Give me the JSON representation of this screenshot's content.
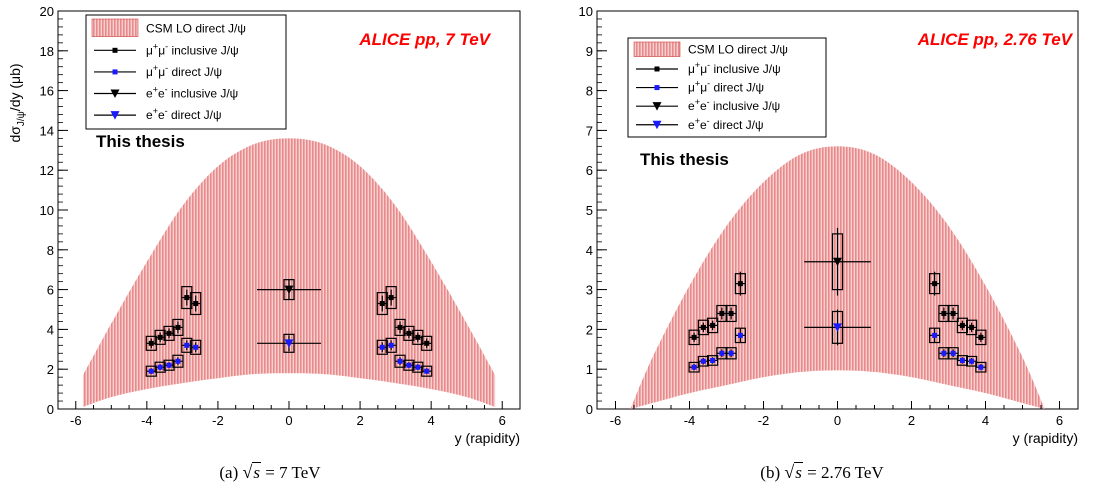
{
  "captions": [
    {
      "prefix": "(a) ",
      "radicand": "s",
      "suffix": " = 7 TeV"
    },
    {
      "prefix": "(b) ",
      "radicand": "s",
      "suffix": " = 2.76 TeV"
    }
  ],
  "chart_data": [
    {
      "type": "scatter",
      "experiment_label": "ALICE pp, 7 TeV",
      "annotation": "This thesis",
      "xlabel": "y (rapidity)",
      "ylabel": "dσJ/ψ/dy (μb)",
      "xlim": [
        -6.5,
        6.5
      ],
      "ylim": [
        0,
        20
      ],
      "xticks": [
        -6,
        -4,
        -2,
        0,
        2,
        4,
        6
      ],
      "yticks": [
        0,
        2,
        4,
        6,
        8,
        10,
        12,
        14,
        16,
        18,
        20
      ],
      "legend_position": "top-left",
      "colors": {
        "band": "#e88a8a",
        "inclusive": "#000000",
        "direct": "#1a1aff",
        "experiment_label": "#ff0000"
      },
      "band": {
        "name": "CSM LO direct J/ψ",
        "x": [
          -5.8,
          -5,
          -4,
          -3,
          -2,
          -1,
          0,
          1,
          2,
          3,
          4,
          5,
          5.8
        ],
        "lower": [
          0.1,
          0.6,
          1.0,
          1.3,
          1.55,
          1.75,
          1.8,
          1.75,
          1.55,
          1.3,
          1.0,
          0.6,
          0.1
        ],
        "upper": [
          1.7,
          4.3,
          7.4,
          10.2,
          12.2,
          13.3,
          13.6,
          13.3,
          12.2,
          10.2,
          7.4,
          4.3,
          1.7
        ]
      },
      "series": [
        {
          "name": "μ+μ- inclusive J/ψ",
          "marker": "square",
          "color": "#000000",
          "points": [
            {
              "x": -3.875,
              "y": 3.3,
              "ex": 0.125,
              "ey": 0.25,
              "sys": 0.35
            },
            {
              "x": -3.625,
              "y": 3.6,
              "ex": 0.125,
              "ey": 0.25,
              "sys": 0.35
            },
            {
              "x": -3.375,
              "y": 3.8,
              "ex": 0.125,
              "ey": 0.25,
              "sys": 0.35
            },
            {
              "x": -3.125,
              "y": 4.1,
              "ex": 0.125,
              "ey": 0.3,
              "sys": 0.4
            },
            {
              "x": -2.875,
              "y": 5.6,
              "ex": 0.125,
              "ey": 0.4,
              "sys": 0.55
            },
            {
              "x": -2.625,
              "y": 5.3,
              "ex": 0.125,
              "ey": 0.4,
              "sys": 0.55
            },
            {
              "x": 2.625,
              "y": 5.3,
              "ex": 0.125,
              "ey": 0.4,
              "sys": 0.55
            },
            {
              "x": 2.875,
              "y": 5.6,
              "ex": 0.125,
              "ey": 0.4,
              "sys": 0.55
            },
            {
              "x": 3.125,
              "y": 4.1,
              "ex": 0.125,
              "ey": 0.3,
              "sys": 0.4
            },
            {
              "x": 3.375,
              "y": 3.8,
              "ex": 0.125,
              "ey": 0.25,
              "sys": 0.35
            },
            {
              "x": 3.625,
              "y": 3.6,
              "ex": 0.125,
              "ey": 0.25,
              "sys": 0.35
            },
            {
              "x": 3.875,
              "y": 3.3,
              "ex": 0.125,
              "ey": 0.25,
              "sys": 0.35
            }
          ]
        },
        {
          "name": "μ+μ- direct J/ψ",
          "marker": "square",
          "color": "#1a1aff",
          "points": [
            {
              "x": -3.875,
              "y": 1.9,
              "ex": 0.125,
              "ey": 0.15,
              "sys": 0.25
            },
            {
              "x": -3.625,
              "y": 2.1,
              "ex": 0.125,
              "ey": 0.15,
              "sys": 0.25
            },
            {
              "x": -3.375,
              "y": 2.2,
              "ex": 0.125,
              "ey": 0.15,
              "sys": 0.25
            },
            {
              "x": -3.125,
              "y": 2.4,
              "ex": 0.125,
              "ey": 0.2,
              "sys": 0.3
            },
            {
              "x": -2.875,
              "y": 3.2,
              "ex": 0.125,
              "ey": 0.25,
              "sys": 0.35
            },
            {
              "x": -2.625,
              "y": 3.1,
              "ex": 0.125,
              "ey": 0.25,
              "sys": 0.35
            },
            {
              "x": 2.625,
              "y": 3.1,
              "ex": 0.125,
              "ey": 0.25,
              "sys": 0.35
            },
            {
              "x": 2.875,
              "y": 3.2,
              "ex": 0.125,
              "ey": 0.25,
              "sys": 0.35
            },
            {
              "x": 3.125,
              "y": 2.4,
              "ex": 0.125,
              "ey": 0.2,
              "sys": 0.3
            },
            {
              "x": 3.375,
              "y": 2.2,
              "ex": 0.125,
              "ey": 0.15,
              "sys": 0.25
            },
            {
              "x": 3.625,
              "y": 2.1,
              "ex": 0.125,
              "ey": 0.15,
              "sys": 0.25
            },
            {
              "x": 3.875,
              "y": 1.9,
              "ex": 0.125,
              "ey": 0.15,
              "sys": 0.25
            }
          ]
        },
        {
          "name": "e+e- inclusive J/ψ",
          "marker": "triangle-down",
          "color": "#000000",
          "points": [
            {
              "x": 0,
              "y": 6.0,
              "ex": 0.9,
              "ey": 0.5,
              "sys": 0.5
            }
          ]
        },
        {
          "name": "e+e- direct J/ψ",
          "marker": "triangle-down",
          "color": "#1a1aff",
          "points": [
            {
              "x": 0,
              "y": 3.3,
              "ex": 0.9,
              "ey": 0.4,
              "sys": 0.45
            }
          ]
        }
      ]
    },
    {
      "type": "scatter",
      "experiment_label": "ALICE pp, 2.76 TeV",
      "annotation": "This thesis",
      "xlabel": "y (rapidity)",
      "ylabel": "",
      "xlim": [
        -6.5,
        6.5
      ],
      "ylim": [
        0,
        10
      ],
      "xticks": [
        -6,
        -4,
        -2,
        0,
        2,
        4,
        6
      ],
      "yticks": [
        0,
        1,
        2,
        3,
        4,
        5,
        6,
        7,
        8,
        9,
        10
      ],
      "legend_position": "top-left",
      "colors": {
        "band": "#e88a8a",
        "inclusive": "#000000",
        "direct": "#1a1aff",
        "experiment_label": "#ff0000"
      },
      "band": {
        "name": "CSM LO direct J/ψ",
        "x": [
          -5.6,
          -5,
          -4,
          -3,
          -2,
          -1,
          0,
          1,
          2,
          3,
          4,
          5,
          5.6
        ],
        "lower": [
          0.0,
          0.15,
          0.4,
          0.6,
          0.8,
          0.93,
          0.97,
          0.93,
          0.8,
          0.6,
          0.4,
          0.15,
          0.0
        ],
        "upper": [
          0.0,
          1.3,
          3.1,
          4.6,
          5.7,
          6.4,
          6.6,
          6.4,
          5.7,
          4.6,
          3.1,
          1.3,
          0.0
        ]
      },
      "series": [
        {
          "name": "μ+μ- inclusive J/ψ",
          "marker": "square",
          "color": "#000000",
          "points": [
            {
              "x": -3.875,
              "y": 1.8,
              "ex": 0.125,
              "ey": 0.12,
              "sys": 0.18
            },
            {
              "x": -3.625,
              "y": 2.05,
              "ex": 0.125,
              "ey": 0.12,
              "sys": 0.18
            },
            {
              "x": -3.375,
              "y": 2.1,
              "ex": 0.125,
              "ey": 0.12,
              "sys": 0.18
            },
            {
              "x": -3.125,
              "y": 2.4,
              "ex": 0.125,
              "ey": 0.15,
              "sys": 0.2
            },
            {
              "x": -2.875,
              "y": 2.4,
              "ex": 0.125,
              "ey": 0.15,
              "sys": 0.2
            },
            {
              "x": -2.625,
              "y": 3.15,
              "ex": 0.125,
              "ey": 0.3,
              "sys": 0.25
            },
            {
              "x": 2.625,
              "y": 3.15,
              "ex": 0.125,
              "ey": 0.3,
              "sys": 0.25
            },
            {
              "x": 2.875,
              "y": 2.4,
              "ex": 0.125,
              "ey": 0.15,
              "sys": 0.2
            },
            {
              "x": 3.125,
              "y": 2.4,
              "ex": 0.125,
              "ey": 0.15,
              "sys": 0.2
            },
            {
              "x": 3.375,
              "y": 2.1,
              "ex": 0.125,
              "ey": 0.12,
              "sys": 0.18
            },
            {
              "x": 3.625,
              "y": 2.05,
              "ex": 0.125,
              "ey": 0.12,
              "sys": 0.18
            },
            {
              "x": 3.875,
              "y": 1.8,
              "ex": 0.125,
              "ey": 0.12,
              "sys": 0.18
            }
          ]
        },
        {
          "name": "μ+μ- direct J/ψ",
          "marker": "square",
          "color": "#1a1aff",
          "points": [
            {
              "x": -3.875,
              "y": 1.05,
              "ex": 0.125,
              "ey": 0.08,
              "sys": 0.12
            },
            {
              "x": -3.625,
              "y": 1.2,
              "ex": 0.125,
              "ey": 0.08,
              "sys": 0.12
            },
            {
              "x": -3.375,
              "y": 1.22,
              "ex": 0.125,
              "ey": 0.08,
              "sys": 0.12
            },
            {
              "x": -3.125,
              "y": 1.4,
              "ex": 0.125,
              "ey": 0.1,
              "sys": 0.14
            },
            {
              "x": -2.875,
              "y": 1.4,
              "ex": 0.125,
              "ey": 0.1,
              "sys": 0.14
            },
            {
              "x": -2.625,
              "y": 1.85,
              "ex": 0.125,
              "ey": 0.18,
              "sys": 0.18
            },
            {
              "x": 2.625,
              "y": 1.85,
              "ex": 0.125,
              "ey": 0.18,
              "sys": 0.18
            },
            {
              "x": 2.875,
              "y": 1.4,
              "ex": 0.125,
              "ey": 0.1,
              "sys": 0.14
            },
            {
              "x": 3.125,
              "y": 1.4,
              "ex": 0.125,
              "ey": 0.1,
              "sys": 0.14
            },
            {
              "x": 3.375,
              "y": 1.22,
              "ex": 0.125,
              "ey": 0.08,
              "sys": 0.12
            },
            {
              "x": 3.625,
              "y": 1.2,
              "ex": 0.125,
              "ey": 0.08,
              "sys": 0.12
            },
            {
              "x": 3.875,
              "y": 1.05,
              "ex": 0.125,
              "ey": 0.08,
              "sys": 0.12
            }
          ]
        },
        {
          "name": "e+e- inclusive J/ψ",
          "marker": "triangle-down",
          "color": "#000000",
          "points": [
            {
              "x": 0,
              "y": 3.7,
              "ex": 0.9,
              "ey": 0.85,
              "sys": 0.7
            }
          ]
        },
        {
          "name": "e+e- direct J/ψ",
          "marker": "triangle-down",
          "color": "#1a1aff",
          "points": [
            {
              "x": 0,
              "y": 2.05,
              "ex": 0.9,
              "ey": 0.45,
              "sys": 0.4
            }
          ]
        }
      ]
    }
  ]
}
